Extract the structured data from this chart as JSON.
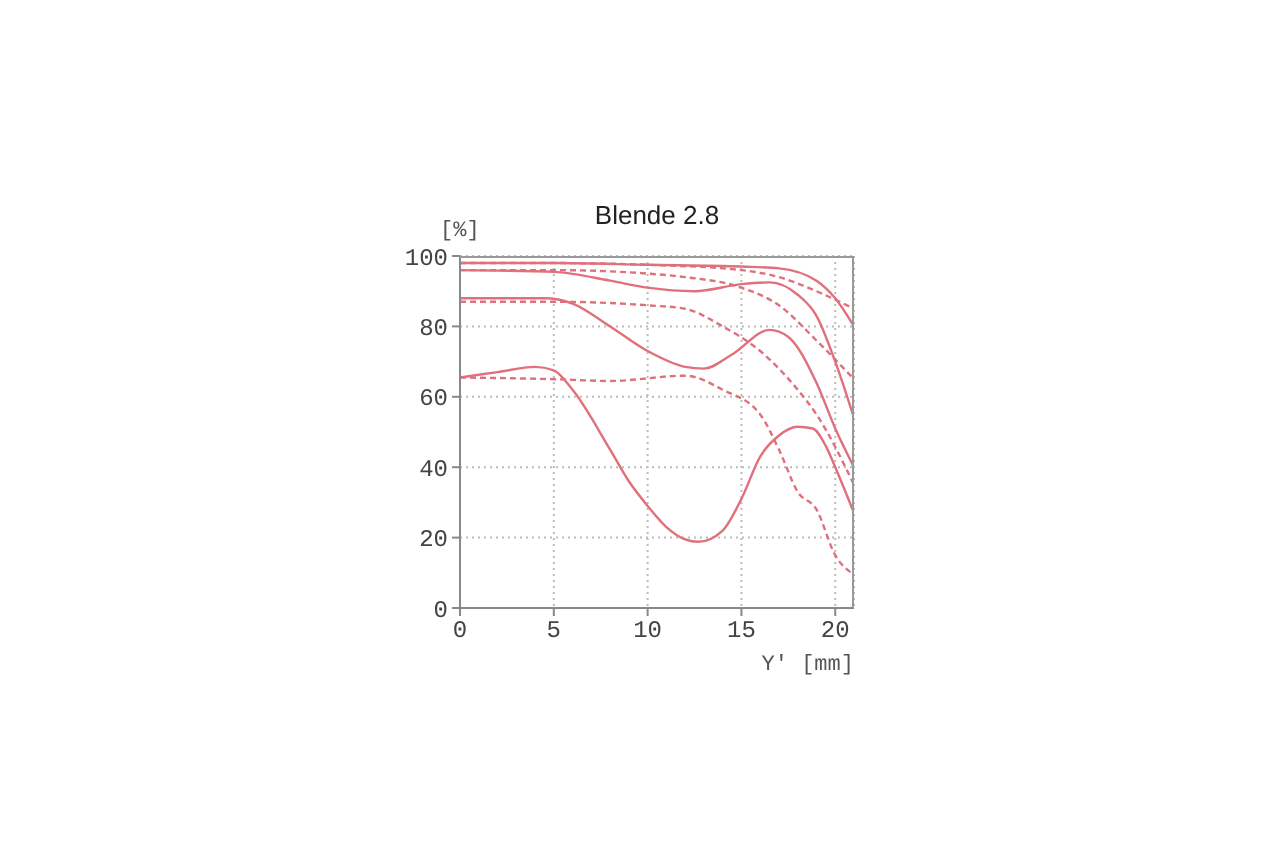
{
  "chart_data": {
    "type": "line",
    "title": "Blende 2.8",
    "xlabel": "Y' [mm]",
    "ylabel": "[%]",
    "xlim": [
      0,
      21
    ],
    "ylim": [
      0,
      100
    ],
    "xticks": [
      0,
      5,
      10,
      15,
      20
    ],
    "yticks": [
      0,
      20,
      40,
      60,
      80,
      100
    ],
    "grid": true,
    "legend": false,
    "marker": "none",
    "series": [
      {
        "color": "#e0707c",
        "line_style": "solid",
        "x": [
          0,
          5,
          10,
          15,
          17,
          19,
          20,
          21
        ],
        "values": [
          98,
          98,
          97.5,
          97,
          96.5,
          93,
          88,
          80
        ]
      },
      {
        "color": "#e0707c",
        "line_style": "dashed",
        "x": [
          0,
          5,
          10,
          15,
          17,
          19,
          21
        ],
        "values": [
          98,
          98,
          97.5,
          96,
          94,
          90,
          85
        ]
      },
      {
        "color": "#e0707c",
        "line_style": "solid",
        "x": [
          0,
          5,
          8,
          10,
          12.5,
          15,
          16.5,
          18,
          19,
          20,
          21
        ],
        "values": [
          96,
          95.5,
          93,
          91,
          90,
          92,
          92.5,
          89,
          83,
          70,
          54
        ]
      },
      {
        "color": "#e0707c",
        "line_style": "dashed",
        "x": [
          0,
          5,
          10,
          12,
          15,
          17,
          19,
          21
        ],
        "values": [
          96,
          96,
          95,
          94,
          91,
          86,
          76,
          65
        ]
      },
      {
        "color": "#e0707c",
        "line_style": "solid",
        "x": [
          0,
          4.5,
          6,
          8,
          10,
          12,
          13,
          14.5,
          16.5,
          17.5,
          19,
          20,
          21
        ],
        "values": [
          88,
          88,
          86.5,
          80,
          73,
          68.5,
          68,
          72,
          79,
          77,
          64,
          51,
          40
        ]
      },
      {
        "color": "#e0707c",
        "line_style": "dashed",
        "x": [
          0,
          5,
          10,
          12,
          14,
          16,
          18,
          19,
          21
        ],
        "values": [
          87,
          87,
          86,
          85,
          80,
          73,
          62,
          55,
          35
        ]
      },
      {
        "color": "#e0707c",
        "line_style": "solid",
        "x": [
          0,
          2,
          4,
          5,
          6,
          8,
          9,
          10,
          11,
          12,
          12.7,
          14,
          15,
          16,
          17,
          18,
          18.8,
          19.5,
          20,
          21
        ],
        "values": [
          65.5,
          67,
          68.5,
          67.5,
          62,
          45,
          36,
          29,
          23,
          19.5,
          18.8,
          22,
          31,
          43,
          49,
          51.5,
          51,
          46,
          40,
          27
        ]
      },
      {
        "color": "#e0707c",
        "line_style": "dashed",
        "x": [
          0,
          5,
          8,
          12,
          14,
          16,
          17,
          18,
          19,
          20,
          21
        ],
        "values": [
          65.5,
          65,
          64.5,
          66,
          62,
          55,
          45,
          33,
          28,
          15,
          9.5
        ]
      }
    ]
  }
}
